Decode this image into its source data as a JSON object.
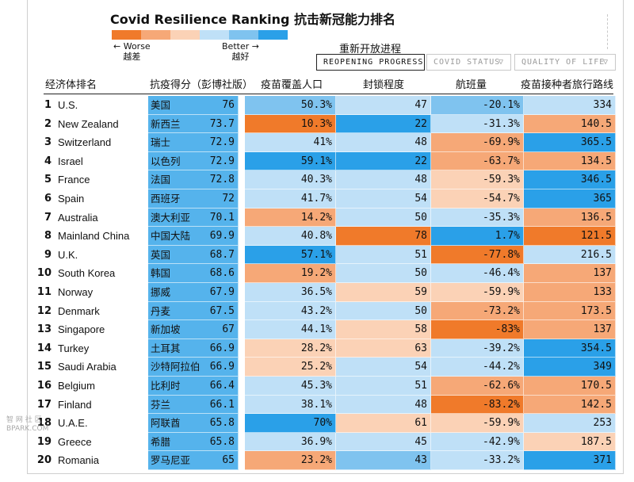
{
  "title": "Covid Resilience Ranking  抗击新冠能力排名",
  "legend": {
    "colors": [
      "#f07a2a",
      "#f6a877",
      "#fbd2b6",
      "#bfe0f7",
      "#7fc3ef",
      "#2aa0e8"
    ],
    "worse": "← Worse",
    "worse_cn": "越差",
    "better": "Better →",
    "better_cn": "越好"
  },
  "reopening_cn": "重新开放进程",
  "tabs": [
    {
      "label": "REOPENING PROGRESS",
      "active": true,
      "caret": ""
    },
    {
      "label": "COVID STATUS",
      "active": false,
      "caret": "▽"
    },
    {
      "label": "QUALITY OF LIFE",
      "active": false,
      "caret": "▽"
    }
  ],
  "headers": [
    "经济体排名",
    "抗疫得分（彭博社版）",
    "疫苗覆盖人口",
    "封锁程度",
    "航班量",
    "疫苗接种者旅行路线"
  ],
  "rows": [
    {
      "rank": "1",
      "name": "U.S.",
      "cn": "美国",
      "score": "76",
      "vax": "50.3%",
      "lock": "47",
      "flights": "-20.1%",
      "routes": "334",
      "c": [
        4,
        4,
        3,
        4,
        3,
        5
      ]
    },
    {
      "rank": "2",
      "name": "New Zealand",
      "cn": "新西兰",
      "score": "73.7",
      "vax": "10.3%",
      "lock": "22",
      "flights": "-31.3%",
      "routes": "140.5",
      "c": [
        4,
        0,
        5,
        3,
        1
      ]
    },
    {
      "rank": "3",
      "name": "Switzerland",
      "cn": "瑞士",
      "score": "72.9",
      "vax": "41%",
      "lock": "48",
      "flights": "-69.9%",
      "routes": "365.5",
      "c": [
        4,
        3,
        3,
        1,
        5
      ]
    },
    {
      "rank": "4",
      "name": "Israel",
      "cn": "以色列",
      "score": "72.9",
      "vax": "59.1%",
      "lock": "22",
      "flights": "-63.7%",
      "routes": "134.5",
      "c": [
        4,
        5,
        5,
        1,
        1
      ]
    },
    {
      "rank": "5",
      "name": "France",
      "cn": "法国",
      "score": "72.8",
      "vax": "40.3%",
      "lock": "48",
      "flights": "-59.3%",
      "routes": "346.5",
      "c": [
        4,
        3,
        3,
        2,
        5
      ]
    },
    {
      "rank": "6",
      "name": "Spain",
      "cn": "西班牙",
      "score": "72",
      "vax": "41.7%",
      "lock": "54",
      "flights": "-54.7%",
      "routes": "365",
      "c": [
        4,
        3,
        3,
        2,
        5
      ]
    },
    {
      "rank": "7",
      "name": "Australia",
      "cn": "澳大利亚",
      "score": "70.1",
      "vax": "14.2%",
      "lock": "50",
      "flights": "-35.3%",
      "routes": "136.5",
      "c": [
        4,
        1,
        3,
        3,
        1
      ]
    },
    {
      "rank": "8",
      "name": "Mainland China",
      "cn": "中国大陆",
      "score": "69.9",
      "vax": "40.8%",
      "lock": "78",
      "flights": "1.7%",
      "routes": "121.5",
      "c": [
        4,
        3,
        0,
        5,
        0
      ]
    },
    {
      "rank": "9",
      "name": "U.K.",
      "cn": "英国",
      "score": "68.7",
      "vax": "57.1%",
      "lock": "51",
      "flights": "-77.8%",
      "routes": "216.5",
      "c": [
        4,
        5,
        3,
        0,
        3
      ]
    },
    {
      "rank": "10",
      "name": "South Korea",
      "cn": "韩国",
      "score": "68.6",
      "vax": "19.2%",
      "lock": "50",
      "flights": "-46.4%",
      "routes": "137",
      "c": [
        4,
        1,
        3,
        3,
        1
      ]
    },
    {
      "rank": "11",
      "name": "Norway",
      "cn": "挪威",
      "score": "67.9",
      "vax": "36.5%",
      "lock": "59",
      "flights": "-59.9%",
      "routes": "133",
      "c": [
        4,
        3,
        2,
        2,
        1
      ]
    },
    {
      "rank": "12",
      "name": "Denmark",
      "cn": "丹麦",
      "score": "67.5",
      "vax": "43.2%",
      "lock": "50",
      "flights": "-73.2%",
      "routes": "173.5",
      "c": [
        4,
        3,
        3,
        1,
        1
      ]
    },
    {
      "rank": "13",
      "name": "Singapore",
      "cn": "新加坡",
      "score": "67",
      "vax": "44.1%",
      "lock": "58",
      "flights": "-83%",
      "routes": "137",
      "c": [
        4,
        3,
        2,
        0,
        1
      ]
    },
    {
      "rank": "14",
      "name": "Turkey",
      "cn": "土耳其",
      "score": "66.9",
      "vax": "28.2%",
      "lock": "63",
      "flights": "-39.2%",
      "routes": "354.5",
      "c": [
        4,
        2,
        2,
        3,
        5
      ]
    },
    {
      "rank": "15",
      "name": "Saudi Arabia",
      "cn": "沙特阿拉伯",
      "score": "66.9",
      "vax": "25.2%",
      "lock": "54",
      "flights": "-44.2%",
      "routes": "349",
      "c": [
        4,
        2,
        3,
        3,
        5
      ]
    },
    {
      "rank": "16",
      "name": "Belgium",
      "cn": "比利时",
      "score": "66.4",
      "vax": "45.3%",
      "lock": "51",
      "flights": "-62.6%",
      "routes": "170.5",
      "c": [
        4,
        3,
        3,
        1,
        1
      ]
    },
    {
      "rank": "17",
      "name": "Finland",
      "cn": "芬兰",
      "score": "66.1",
      "vax": "38.1%",
      "lock": "48",
      "flights": "-83.2%",
      "routes": "142.5",
      "c": [
        4,
        3,
        3,
        0,
        1
      ]
    },
    {
      "rank": "18",
      "name": "U.A.E.",
      "cn": "阿联酋",
      "score": "65.8",
      "vax": "70%",
      "lock": "61",
      "flights": "-59.9%",
      "routes": "253",
      "c": [
        4,
        5,
        2,
        2,
        3
      ]
    },
    {
      "rank": "19",
      "name": "Greece",
      "cn": "希腊",
      "score": "65.8",
      "vax": "36.9%",
      "lock": "45",
      "flights": "-42.9%",
      "routes": "187.5",
      "c": [
        4,
        3,
        3,
        3,
        2
      ]
    },
    {
      "rank": "20",
      "name": "Romania",
      "cn": "罗马尼亚",
      "score": "65",
      "vax": "23.2%",
      "lock": "43",
      "flights": "-33.2%",
      "routes": "371",
      "c": [
        4,
        1,
        4,
        3,
        5
      ]
    }
  ],
  "palette": [
    "#f07a2a",
    "#f6a877",
    "#fbd2b6",
    "#bfe0f7",
    "#7fc3ef",
    "#2aa0e8"
  ],
  "score_color": "#55b3ec",
  "watermark": "智 网 社 区\nBPARK.COM"
}
